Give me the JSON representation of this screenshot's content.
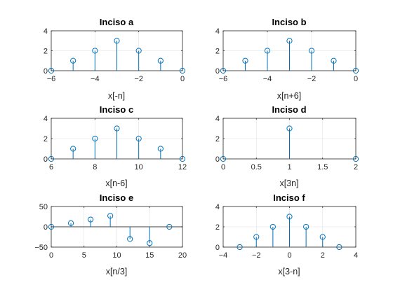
{
  "colors": {
    "stem": "#0072bd",
    "grid": "#dfdfdf",
    "axes": "#262626"
  },
  "chart_data": [
    {
      "type": "stem",
      "title": "Inciso a",
      "xlabel": "x[-n]",
      "xlim": [
        -6,
        0
      ],
      "ylim": [
        0,
        4
      ],
      "xticks": [
        -6,
        -4,
        -2,
        0
      ],
      "yticks": [
        0,
        2,
        4
      ],
      "grid": true,
      "x": [
        -6,
        -5,
        -4,
        -3,
        -2,
        -1,
        0
      ],
      "y": [
        0,
        1,
        2,
        3,
        2,
        1,
        0
      ]
    },
    {
      "type": "stem",
      "title": "Inciso b",
      "xlabel": "x[n+6]",
      "xlim": [
        -6,
        0
      ],
      "ylim": [
        0,
        4
      ],
      "xticks": [
        -6,
        -4,
        -2,
        0
      ],
      "yticks": [
        0,
        2,
        4
      ],
      "grid": true,
      "x": [
        -6,
        -5,
        -4,
        -3,
        -2,
        -1,
        0
      ],
      "y": [
        0,
        1,
        2,
        3,
        2,
        1,
        0
      ]
    },
    {
      "type": "stem",
      "title": "Inciso c",
      "xlabel": "x[n-6]",
      "xlim": [
        6,
        12
      ],
      "ylim": [
        0,
        4
      ],
      "xticks": [
        6,
        8,
        10,
        12
      ],
      "yticks": [
        0,
        2,
        4
      ],
      "grid": true,
      "x": [
        6,
        7,
        8,
        9,
        10,
        11,
        12
      ],
      "y": [
        0,
        1,
        2,
        3,
        2,
        1,
        0
      ]
    },
    {
      "type": "stem",
      "title": "Inciso d",
      "xlabel": "x[3n]",
      "xlim": [
        0,
        2
      ],
      "ylim": [
        0,
        4
      ],
      "xticks": [
        0,
        0.5,
        1,
        1.5,
        2
      ],
      "yticks": [
        0,
        2,
        4
      ],
      "grid": true,
      "x": [
        0,
        1,
        2
      ],
      "y": [
        0,
        3,
        0
      ]
    },
    {
      "type": "stem",
      "title": "Inciso e",
      "xlabel": "x[n/3]",
      "xlim": [
        0,
        20
      ],
      "ylim": [
        -50,
        50
      ],
      "xticks": [
        0,
        5,
        10,
        15,
        20
      ],
      "yticks": [
        -50,
        0,
        50
      ],
      "grid": true,
      "x": [
        0,
        3,
        6,
        9,
        12,
        15,
        18
      ],
      "y": [
        0,
        9,
        18,
        27,
        -30,
        -40,
        0
      ]
    },
    {
      "type": "stem",
      "title": "Inciso f",
      "xlabel": "x[3-n]",
      "xlim": [
        -4,
        4
      ],
      "ylim": [
        0,
        4
      ],
      "xticks": [
        -4,
        -2,
        0,
        2,
        4
      ],
      "yticks": [
        0,
        2,
        4
      ],
      "grid": true,
      "x": [
        -3,
        -2,
        -1,
        0,
        1,
        2,
        3
      ],
      "y": [
        0,
        1,
        2,
        3,
        2,
        1,
        0
      ]
    }
  ]
}
